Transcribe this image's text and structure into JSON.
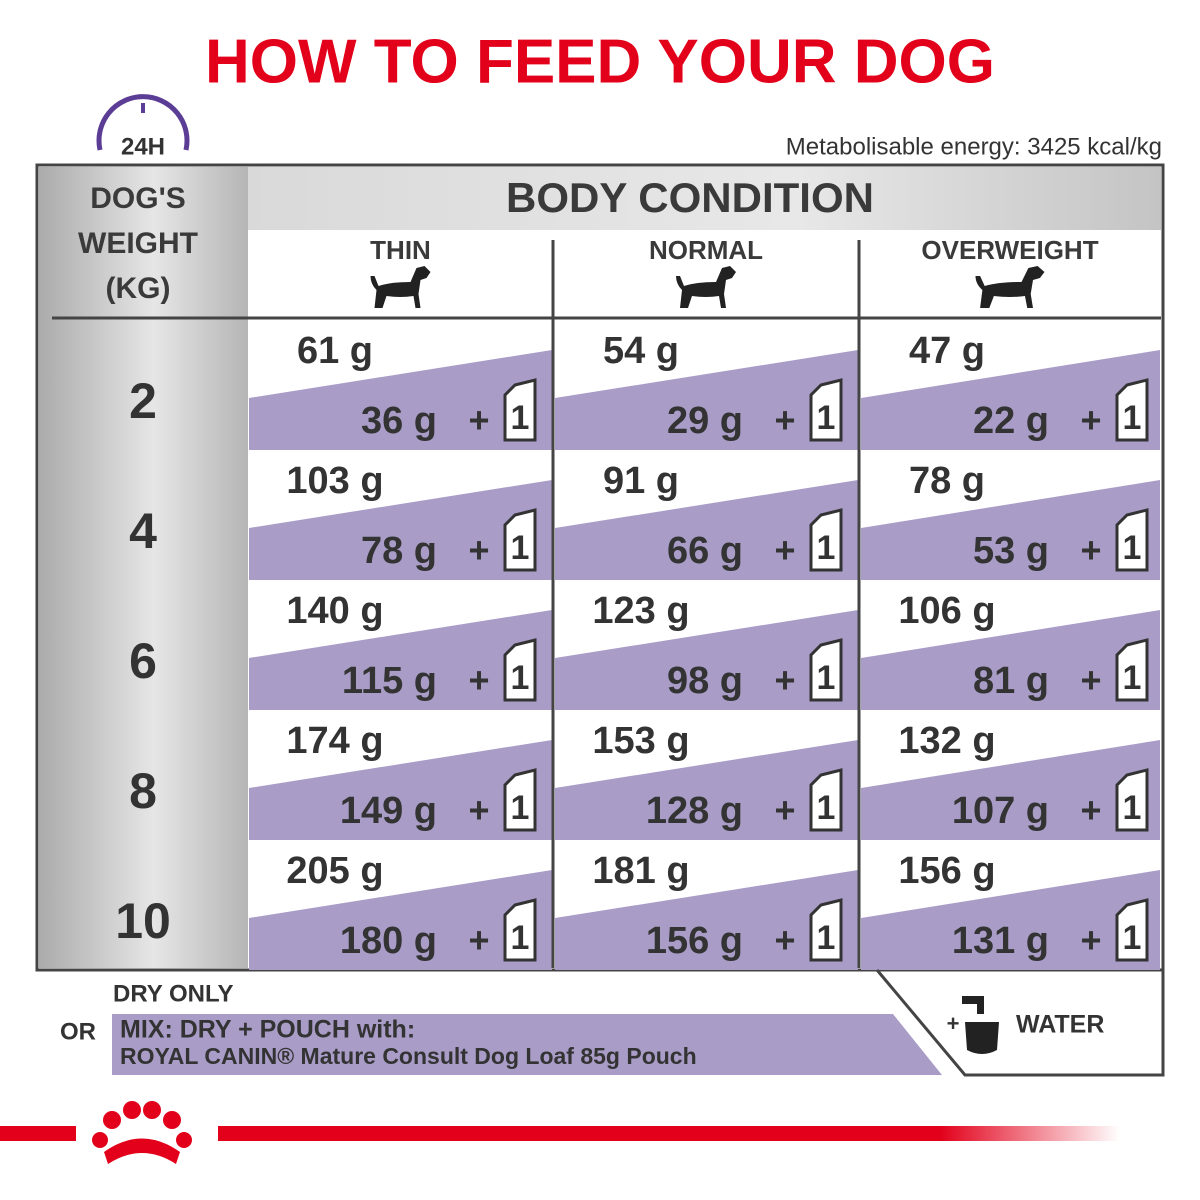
{
  "header": {
    "title": "HOW TO FEED YOUR DOG",
    "clock_label": "24H",
    "energy": "Metabolisable energy: 3425 kcal/kg"
  },
  "table": {
    "weight_header": [
      "DOG'S",
      "WEIGHT",
      "(KG)"
    ],
    "group_header": "BODY CONDITION",
    "columns": [
      "THIN",
      "NORMAL",
      "OVERWEIGHT"
    ],
    "plus": "+",
    "pouch_label": "1",
    "rows": [
      {
        "weight": "2",
        "cells": [
          {
            "dry": "61 g",
            "mix": "36 g"
          },
          {
            "dry": "54 g",
            "mix": "29 g"
          },
          {
            "dry": "47 g",
            "mix": "22 g"
          }
        ]
      },
      {
        "weight": "4",
        "cells": [
          {
            "dry": "103 g",
            "mix": "78 g"
          },
          {
            "dry": "91 g",
            "mix": "66 g"
          },
          {
            "dry": "78 g",
            "mix": "53 g"
          }
        ]
      },
      {
        "weight": "6",
        "cells": [
          {
            "dry": "140 g",
            "mix": "115 g"
          },
          {
            "dry": "123 g",
            "mix": "98 g"
          },
          {
            "dry": "106 g",
            "mix": "81 g"
          }
        ]
      },
      {
        "weight": "8",
        "cells": [
          {
            "dry": "174 g",
            "mix": "149 g"
          },
          {
            "dry": "153 g",
            "mix": "128 g"
          },
          {
            "dry": "132 g",
            "mix": "107 g"
          }
        ]
      },
      {
        "weight": "10",
        "cells": [
          {
            "dry": "205 g",
            "mix": "180 g"
          },
          {
            "dry": "181 g",
            "mix": "156 g"
          },
          {
            "dry": "156 g",
            "mix": "131 g"
          }
        ]
      }
    ]
  },
  "footer": {
    "dry_only": "DRY ONLY",
    "or": "OR",
    "mix_title": "MIX: DRY + POUCH with:",
    "mix_product": "ROYAL CANIN® Mature Consult Dog Loaf 85g Pouch",
    "water_plus": "+",
    "water": "WATER"
  }
}
